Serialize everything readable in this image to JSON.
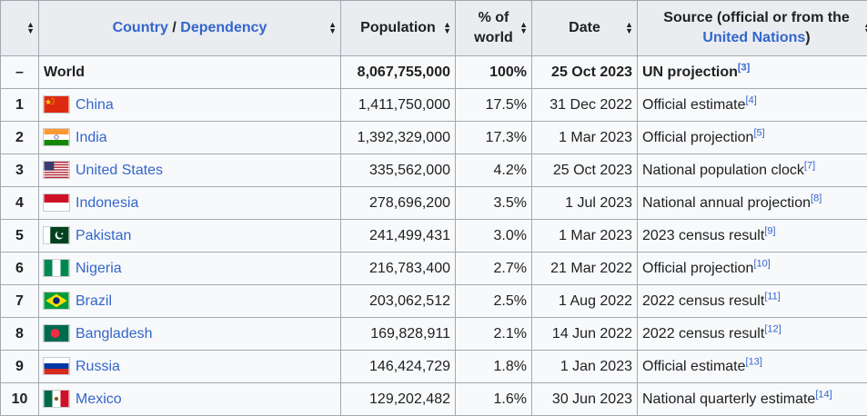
{
  "header": {
    "rank_label": "",
    "country_link_1": "Country",
    "country_sep": " / ",
    "country_link_2": "Dependency",
    "population": "Population",
    "percent": "% of world",
    "date": "Date",
    "source_prefix": "Source (official or from the ",
    "source_link": "United Nations",
    "source_suffix": ")"
  },
  "world": {
    "rank": "–",
    "name": "World",
    "population": "8,067,755,000",
    "percent": "100%",
    "date": "25 Oct 2023",
    "source": "UN projection",
    "ref": "[3]"
  },
  "rows": [
    {
      "rank": "1",
      "name": "China",
      "flag": "china",
      "population": "1,411,750,000",
      "percent": "17.5%",
      "date": "31 Dec 2022",
      "source": "Official estimate",
      "ref": "[4]"
    },
    {
      "rank": "2",
      "name": "India",
      "flag": "india",
      "population": "1,392,329,000",
      "percent": "17.3%",
      "date": "1 Mar 2023",
      "source": "Official projection",
      "ref": "[5]"
    },
    {
      "rank": "3",
      "name": "United States",
      "flag": "usa",
      "population": "335,562,000",
      "percent": "4.2%",
      "date": "25 Oct 2023",
      "source": "National population clock",
      "ref": "[7]"
    },
    {
      "rank": "4",
      "name": "Indonesia",
      "flag": "indonesia",
      "population": "278,696,200",
      "percent": "3.5%",
      "date": "1 Jul 2023",
      "source": "National annual projection",
      "ref": "[8]"
    },
    {
      "rank": "5",
      "name": "Pakistan",
      "flag": "pakistan",
      "population": "241,499,431",
      "percent": "3.0%",
      "date": "1 Mar 2023",
      "source": "2023 census result",
      "ref": "[9]"
    },
    {
      "rank": "6",
      "name": "Nigeria",
      "flag": "nigeria",
      "population": "216,783,400",
      "percent": "2.7%",
      "date": "21 Mar 2022",
      "source": "Official projection",
      "ref": "[10]"
    },
    {
      "rank": "7",
      "name": "Brazil",
      "flag": "brazil",
      "population": "203,062,512",
      "percent": "2.5%",
      "date": "1 Aug 2022",
      "source": "2022 census result",
      "ref": "[11]"
    },
    {
      "rank": "8",
      "name": "Bangladesh",
      "flag": "bangladesh",
      "population": "169,828,911",
      "percent": "2.1%",
      "date": "14 Jun 2022",
      "source": "2022 census result",
      "ref": "[12]"
    },
    {
      "rank": "9",
      "name": "Russia",
      "flag": "russia",
      "population": "146,424,729",
      "percent": "1.8%",
      "date": "1 Jan 2023",
      "source": "Official estimate",
      "ref": "[13]"
    },
    {
      "rank": "10",
      "name": "Mexico",
      "flag": "mexico",
      "population": "129,202,482",
      "percent": "1.6%",
      "date": "30 Jun 2023",
      "source": "National quarterly estimate",
      "ref": "[14]"
    }
  ]
}
